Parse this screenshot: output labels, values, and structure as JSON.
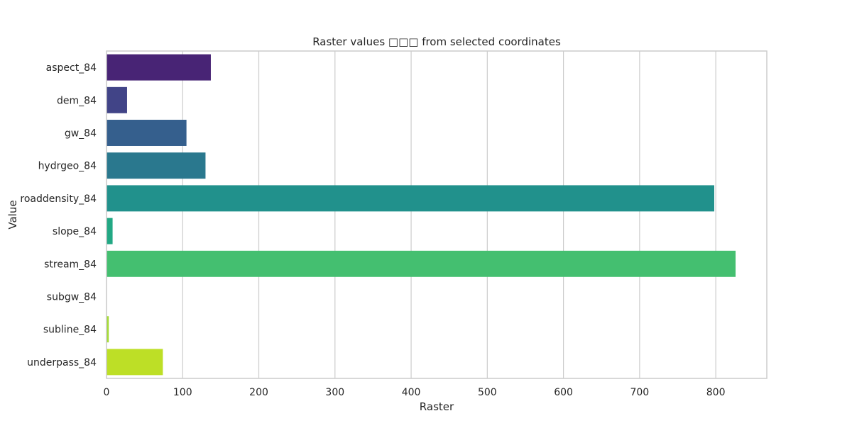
{
  "chart_data": {
    "type": "bar",
    "orientation": "horizontal",
    "title": "Raster values □□□ from selected coordinates",
    "xlabel": "Raster",
    "ylabel": "Value",
    "categories": [
      "aspect_84",
      "dem_84",
      "gw_84",
      "hydrgeo_84",
      "roaddensity_84",
      "slope_84",
      "stream_84",
      "subgw_84",
      "subline_84",
      "underpass_84"
    ],
    "values": [
      137,
      27,
      105,
      130,
      798,
      8,
      826,
      0,
      3,
      74
    ],
    "xlim": [
      0,
      867
    ],
    "xticks": [
      0,
      100,
      200,
      300,
      400,
      500,
      600,
      700,
      800
    ],
    "grid": true,
    "colors": [
      "#482475",
      "#414487",
      "#355f8d",
      "#2a788e",
      "#21918c",
      "#22a884",
      "#44bf70",
      "#7ad151",
      "#a5db36",
      "#bddf26"
    ]
  }
}
